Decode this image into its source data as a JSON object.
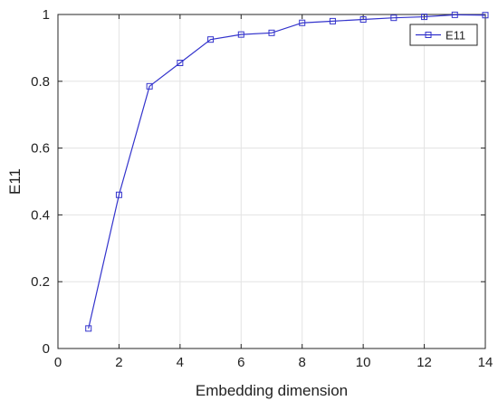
{
  "chart_data": {
    "type": "line",
    "xlabel": "Embedding dimension",
    "ylabel": "E11",
    "xlim": [
      0,
      14
    ],
    "ylim": [
      0,
      1
    ],
    "xticks": [
      0,
      2,
      4,
      6,
      8,
      10,
      12,
      14
    ],
    "yticks": [
      0,
      0.2,
      0.4,
      0.6,
      0.8,
      1
    ],
    "xtick_labels": [
      "0",
      "2",
      "4",
      "6",
      "8",
      "10",
      "12",
      "14"
    ],
    "ytick_labels": [
      "0",
      "0.2",
      "0.4",
      "0.6",
      "0.8",
      "1"
    ],
    "grid": true,
    "legend_position": "top-right",
    "series": [
      {
        "name": "E11",
        "color": "#3333cc",
        "marker": "square",
        "x": [
          1,
          2,
          3,
          4,
          5,
          6,
          7,
          8,
          9,
          10,
          11,
          12,
          13,
          14
        ],
        "y": [
          0.06,
          0.46,
          0.785,
          0.855,
          0.925,
          0.94,
          0.945,
          0.975,
          0.98,
          0.985,
          0.99,
          0.993,
          0.999,
          0.998
        ]
      }
    ]
  }
}
